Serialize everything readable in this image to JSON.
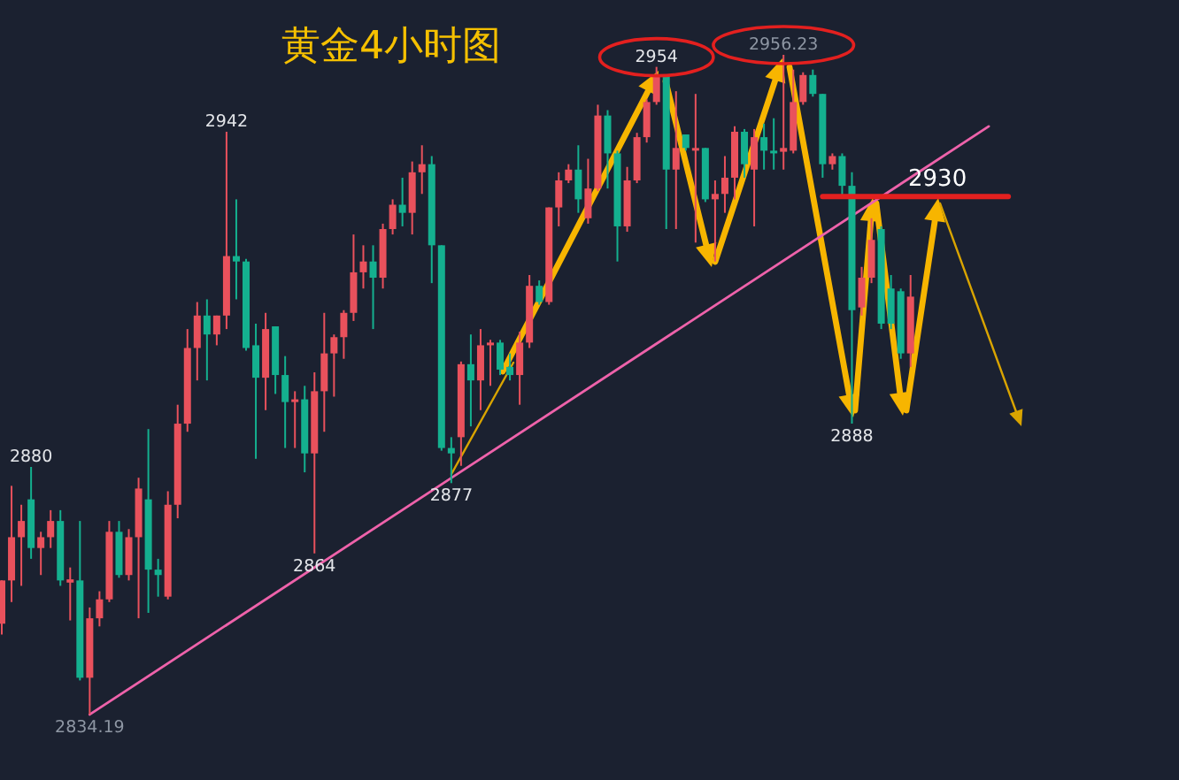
{
  "chart_data": {
    "type": "candlestick",
    "title": "黄金4小时图",
    "categories": [
      null,
      null,
      null,
      null,
      null,
      null,
      null,
      null,
      null,
      null,
      null,
      null,
      null,
      null,
      null,
      null,
      null,
      null,
      null,
      null,
      null,
      null,
      null,
      null,
      null,
      null,
      null,
      null,
      null,
      null,
      null,
      null,
      null,
      null,
      null,
      null,
      null,
      null,
      null,
      null,
      null,
      null,
      null,
      null,
      null,
      null,
      null,
      null,
      null,
      null,
      null,
      null,
      null,
      null,
      null,
      null,
      null,
      null,
      null,
      null,
      null,
      null,
      null,
      null,
      null,
      null,
      null,
      null,
      null,
      null,
      null,
      null,
      null,
      null,
      null,
      null,
      null,
      null,
      null,
      null,
      null,
      null,
      null,
      null,
      null,
      null,
      null,
      null,
      null,
      null,
      null,
      null,
      null,
      null,
      null,
      null,
      null,
      null,
      null,
      null,
      null,
      null,
      null,
      null
    ],
    "ohlc": [
      [
        2851,
        2859,
        2849,
        2859
      ],
      [
        2859,
        2876.5,
        2855,
        2867
      ],
      [
        2867,
        2873,
        2858,
        2870
      ],
      [
        2874,
        2880,
        2863,
        2865
      ],
      [
        2865,
        2868,
        2860,
        2867
      ],
      [
        2867,
        2872,
        2865,
        2870
      ],
      [
        2870,
        2872,
        2858,
        2859
      ],
      [
        2858.6,
        2861.4,
        2851.6,
        2859.2
      ],
      [
        2859,
        2870,
        2840.5,
        2841
      ],
      [
        2841,
        2854,
        2834.19,
        2852
      ],
      [
        2852,
        2857,
        2850.5,
        2855.5
      ],
      [
        2855.5,
        2870,
        2855,
        2868
      ],
      [
        2868,
        2870,
        2859.5,
        2860
      ],
      [
        2860,
        2868.5,
        2859,
        2867
      ],
      [
        2867,
        2878,
        2852,
        2876
      ],
      [
        2874,
        2887,
        2853,
        2861
      ],
      [
        2861,
        2863,
        2856,
        2860
      ],
      [
        2856,
        2875.5,
        2855.5,
        2873
      ],
      [
        2873,
        2891.5,
        2870.5,
        2888
      ],
      [
        2888,
        2905.5,
        2886.5,
        2902
      ],
      [
        2902,
        2910.5,
        2896,
        2908
      ],
      [
        2908,
        2911,
        2896,
        2904.5
      ],
      [
        2904.5,
        2908,
        2902.5,
        2908
      ],
      [
        2908,
        2942,
        2905.5,
        2919
      ],
      [
        2919,
        2929.5,
        2911,
        2918
      ],
      [
        2918,
        2918.5,
        2901.5,
        2902
      ],
      [
        2902.5,
        2906.5,
        2881.5,
        2896.5
      ],
      [
        2896.5,
        2908.5,
        2890.5,
        2905.5
      ],
      [
        2906,
        2906,
        2893.5,
        2897
      ],
      [
        2897,
        2900.5,
        2883.5,
        2892
      ],
      [
        2892,
        2894,
        2883.5,
        2892.5
      ],
      [
        2892.5,
        2895,
        2879,
        2882.5
      ],
      [
        2882.5,
        2897.5,
        2864,
        2894
      ],
      [
        2894,
        2908.5,
        2886.5,
        2901
      ],
      [
        2901,
        2904.5,
        2893,
        2904
      ],
      [
        2904,
        2909,
        2900,
        2908.5
      ],
      [
        2908.5,
        2923,
        2907,
        2916
      ],
      [
        2916,
        2921,
        2913,
        2918
      ],
      [
        2918,
        2921,
        2905.5,
        2915
      ],
      [
        2915,
        2925,
        2913,
        2924
      ],
      [
        2924,
        2929.5,
        2923,
        2928.5
      ],
      [
        2928.5,
        2933.5,
        2924.5,
        2927
      ],
      [
        2927,
        2936.5,
        2923,
        2934.5
      ],
      [
        2934.5,
        2939.5,
        2930.5,
        2936
      ],
      [
        2936,
        2937.5,
        2914,
        2921
      ],
      [
        2921,
        2921,
        2883,
        2883.5
      ],
      [
        2883.5,
        2885.5,
        2877,
        2882.5
      ],
      [
        2885.5,
        2899.5,
        2880.2,
        2899
      ],
      [
        2899,
        2904.5,
        2887.5,
        2896
      ],
      [
        2896,
        2905.5,
        2890.5,
        2902.5
      ],
      [
        2902.5,
        2903.5,
        2895,
        2903
      ],
      [
        2903,
        2903.5,
        2897,
        2898
      ],
      [
        2898.5,
        2901,
        2896,
        2897
      ],
      [
        2897,
        2905,
        2891.5,
        2903
      ],
      [
        2903,
        2915.5,
        2902,
        2913.5
      ],
      [
        2913.5,
        2914.5,
        2910,
        2910.5
      ],
      [
        2910.5,
        2928,
        2910,
        2928
      ],
      [
        2928,
        2934.5,
        2924.5,
        2933
      ],
      [
        2933,
        2936,
        2932.5,
        2935
      ],
      [
        2935,
        2939.5,
        2927,
        2929.5
      ],
      [
        2926,
        2937,
        2925,
        2931.5
      ],
      [
        2931.5,
        2947,
        2931,
        2945
      ],
      [
        2945,
        2946,
        2931.5,
        2938
      ],
      [
        2938,
        2938.5,
        2918,
        2924.5
      ],
      [
        2924.5,
        2935.5,
        2923.5,
        2933
      ],
      [
        2933,
        2941.8,
        2932.5,
        2941
      ],
      [
        2941,
        2948,
        2940,
        2947.5
      ],
      [
        2947.5,
        2954,
        2947,
        2952.5
      ],
      [
        2952.5,
        2952.5,
        2924,
        2935
      ],
      [
        2935,
        2949.5,
        2924,
        2939
      ],
      [
        2941.5,
        2941.5,
        2938.5,
        2939
      ],
      [
        2938.5,
        2949,
        2921.5,
        2939
      ],
      [
        2939,
        2939,
        2929,
        2929.5
      ],
      [
        2929.5,
        2933,
        2918,
        2930.5
      ],
      [
        2930.5,
        2937.5,
        2927,
        2933.5
      ],
      [
        2933.5,
        2943,
        2929.5,
        2942
      ],
      [
        2942,
        2942.5,
        2933.5,
        2936
      ],
      [
        2935,
        2942.5,
        2924.5,
        2941
      ],
      [
        2941,
        2943.5,
        2935,
        2938.5
      ],
      [
        2938.5,
        2944.5,
        2935,
        2938
      ],
      [
        2938.3,
        2956.23,
        2935,
        2939
      ],
      [
        2938.5,
        2953.5,
        2938,
        2947.5
      ],
      [
        2947.5,
        2953,
        2947,
        2952.5
      ],
      [
        2952.5,
        2953.5,
        2948.5,
        2949
      ],
      [
        2949,
        2949,
        2933.5,
        2936
      ],
      [
        2936,
        2938,
        2935,
        2937.5
      ],
      [
        2937.5,
        2938,
        2930,
        2932
      ],
      [
        2932,
        2934.5,
        2888,
        2909
      ],
      [
        2909.5,
        2917,
        2908,
        2915
      ],
      [
        2915,
        2926,
        2914,
        2922
      ],
      [
        2924,
        2924.5,
        2905.5,
        2906.5
      ],
      [
        2913,
        2915.5,
        2905.5,
        2906.5
      ],
      [
        2912.5,
        2913,
        2900,
        2901
      ],
      [
        2901,
        2915.5,
        2898.5,
        2911.5
      ],
      null,
      null,
      null,
      null,
      null,
      null,
      null,
      null,
      null,
      null
    ],
    "colors": [
      "#e9515c",
      "#e9515c",
      "#e9515c",
      "#14b08f",
      "#e9515c",
      "#e9515c",
      "#14b08f",
      "#e9515c",
      "#14b08f",
      "#e9515c",
      "#e9515c",
      "#e9515c",
      "#14b08f",
      "#e9515c",
      "#e9515c",
      "#14b08f",
      "#14b08f",
      "#e9515c",
      "#e9515c",
      "#e9515c",
      "#e9515c",
      "#14b08f",
      "#e9515c",
      "#e9515c",
      "#14b08f",
      "#14b08f",
      "#14b08f",
      "#e9515c",
      "#14b08f",
      "#14b08f",
      "#e9515c",
      "#14b08f",
      "#e9515c",
      "#e9515c",
      "#e9515c",
      "#e9515c",
      "#e9515c",
      "#e9515c",
      "#14b08f",
      "#e9515c",
      "#e9515c",
      "#14b08f",
      "#e9515c",
      "#e9515c",
      "#14b08f",
      "#14b08f",
      "#14b08f",
      "#e9515c",
      "#14b08f",
      "#e9515c",
      "#e9515c",
      "#14b08f",
      "#14b08f",
      "#e9515c",
      "#e9515c",
      "#14b08f",
      "#e9515c",
      "#e9515c",
      "#e9515c",
      "#14b08f",
      "#e9515c",
      "#e9515c",
      "#14b08f",
      "#14b08f",
      "#e9515c",
      "#e9515c",
      "#e9515c",
      "#e9515c",
      "#14b08f",
      "#e9515c",
      "#14b08f",
      "#e9515c",
      "#14b08f",
      "#e9515c",
      "#e9515c",
      "#e9515c",
      "#14b08f",
      "#e9515c",
      "#14b08f",
      "#14b08f",
      "#e9515c",
      "#e9515c",
      "#e9515c",
      "#14b08f",
      "#14b08f",
      "#e9515c",
      "#14b08f",
      "#14b08f",
      "#e9515c",
      "#e9515c",
      "#14b08f",
      "#14b08f",
      "#14b08f",
      "#e9515c",
      null,
      null,
      null,
      null,
      null,
      null,
      null,
      null,
      null,
      null
    ],
    "series": [
      {
        "type": "line",
        "color": "#ee62aa",
        "values": [
          null,
          null,
          null,
          null,
          null,
          null,
          null,
          null,
          null,
          2834.2,
          null,
          null,
          null,
          null,
          null,
          null,
          null,
          null,
          null,
          null,
          null,
          null,
          null,
          null,
          null,
          null,
          null,
          null,
          null,
          null,
          null,
          null,
          null,
          null,
          null,
          null,
          null,
          null,
          null,
          null,
          null,
          null,
          null,
          null,
          null,
          null,
          null,
          null,
          null,
          null,
          null,
          null,
          null,
          null,
          null,
          null,
          null,
          null,
          null,
          null,
          null,
          null,
          null,
          null,
          null,
          null,
          null,
          null,
          null,
          null,
          null,
          null,
          null,
          null,
          null,
          null,
          null,
          null,
          null,
          null,
          null,
          null,
          null,
          null,
          null,
          null,
          null,
          null,
          null,
          null,
          null,
          null,
          null,
          null,
          null,
          null,
          null,
          null,
          null,
          null,
          null,
          2943,
          null,
          null
        ]
      },
      {
        "type": "line",
        "name": "2930",
        "color": "#e3201f",
        "values": [
          null,
          null,
          null,
          null,
          null,
          null,
          null,
          null,
          null,
          null,
          null,
          null,
          null,
          null,
          null,
          null,
          null,
          null,
          null,
          null,
          null,
          null,
          null,
          null,
          null,
          null,
          null,
          null,
          null,
          null,
          null,
          null,
          null,
          null,
          null,
          null,
          null,
          null,
          null,
          null,
          null,
          null,
          null,
          null,
          null,
          null,
          null,
          null,
          null,
          null,
          null,
          null,
          null,
          null,
          null,
          null,
          null,
          null,
          null,
          null,
          null,
          null,
          null,
          null,
          null,
          null,
          null,
          null,
          null,
          null,
          null,
          null,
          null,
          null,
          null,
          null,
          null,
          null,
          null,
          null,
          null,
          null,
          null,
          null,
          2930,
          null,
          null,
          null,
          null,
          null,
          null,
          null,
          null,
          null,
          null,
          null,
          null,
          null,
          null,
          null,
          null,
          null,
          null,
          2930
        ]
      }
    ],
    "annotations": [
      {
        "text": "2880",
        "y": 2880
      },
      {
        "text": "2834.19",
        "y": 2834.19
      },
      {
        "text": "2942",
        "y": 2942
      },
      {
        "text": "2864",
        "y": 2864
      },
      {
        "text": "2877",
        "y": 2877
      },
      {
        "text": "2954",
        "y": 2954
      },
      {
        "text": "2956.23",
        "y": 2956.23
      },
      {
        "text": "2888",
        "y": 2888
      }
    ]
  }
}
